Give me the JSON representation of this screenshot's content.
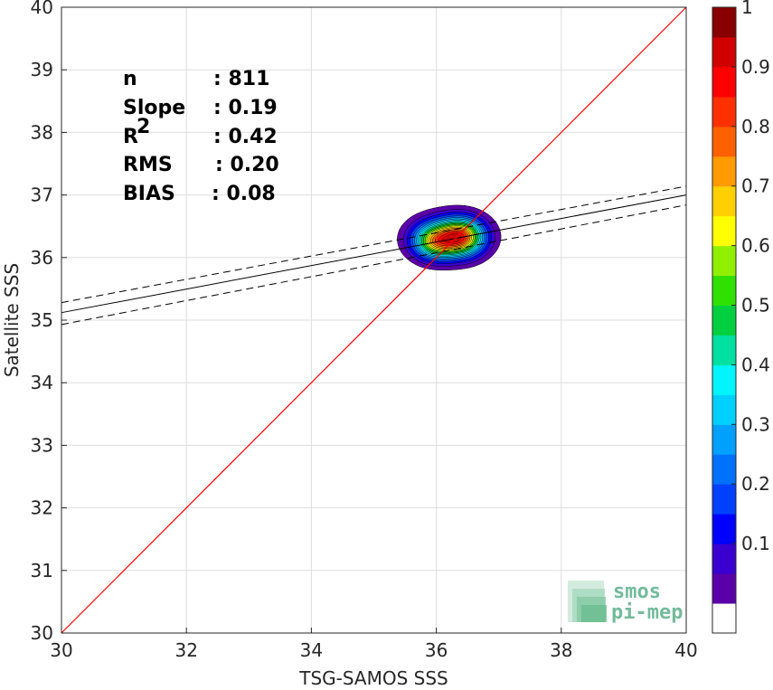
{
  "chart_data": {
    "type": "scatter",
    "title": "",
    "xlabel": "TSG-SAMOS SSS",
    "ylabel": "Satellite SSS",
    "xlim": [
      30,
      40
    ],
    "ylim": [
      30,
      40
    ],
    "xticks": [
      "30",
      "32",
      "34",
      "36",
      "38",
      "40"
    ],
    "yticks": [
      "30",
      "31",
      "32",
      "33",
      "34",
      "35",
      "36",
      "37",
      "38",
      "39",
      "40"
    ],
    "grid": true,
    "stats": [
      {
        "label": "n",
        "value": ": 811"
      },
      {
        "label": "Slope",
        "value": ": 0.19"
      },
      {
        "label": "R",
        "sup": "2",
        "value": ": 0.42"
      },
      {
        "label": "RMS",
        "value": ": 0.20"
      },
      {
        "label": "BIAS",
        "value": ": 0.08"
      }
    ],
    "identity_line": {
      "x": [
        30,
        40
      ],
      "y": [
        30,
        40
      ],
      "color": "#ff0000"
    },
    "fit_line": {
      "x": [
        30,
        40
      ],
      "y": [
        35.12,
        37.0
      ],
      "color": "#000000"
    },
    "confidence_upper": {
      "x": [
        30,
        40
      ],
      "y": [
        35.28,
        37.14
      ]
    },
    "confidence_lower": {
      "x": [
        30,
        40
      ],
      "y": [
        34.93,
        36.84
      ]
    },
    "density": {
      "peaks": [
        {
          "x": 35.98,
          "y": 36.25,
          "sx": 0.33,
          "sy": 0.26,
          "amp": 0.85
        },
        {
          "x": 36.42,
          "y": 36.33,
          "sx": 0.33,
          "sy": 0.28,
          "amp": 1.0
        },
        {
          "x": 36.2,
          "y": 36.33,
          "sx": 0.55,
          "sy": 0.33,
          "amp": 0.55
        }
      ],
      "levels": [
        0.05,
        0.1,
        0.15,
        0.2,
        0.25,
        0.3,
        0.35,
        0.4,
        0.45,
        0.5,
        0.55,
        0.6,
        0.65,
        0.7,
        0.75,
        0.8,
        0.85,
        0.9,
        0.95
      ]
    },
    "colorbar": {
      "ticks": [
        "0.1",
        "0.2",
        "0.3",
        "0.4",
        "0.5",
        "0.6",
        "0.7",
        "0.8",
        "0.9",
        "1"
      ],
      "colors": [
        "#ffffff",
        "#5a00a8",
        "#3a00d0",
        "#0000ff",
        "#0040ff",
        "#0070ff",
        "#00a0ff",
        "#00d0ff",
        "#00f5ff",
        "#00e0a0",
        "#00d040",
        "#30e000",
        "#90f000",
        "#ffff00",
        "#ffd000",
        "#ff9a00",
        "#ff6000",
        "#ff3000",
        "#ff0000",
        "#d00000",
        "#880000"
      ]
    },
    "watermark": {
      "line1": "smos",
      "line2": "pi-mep"
    }
  }
}
